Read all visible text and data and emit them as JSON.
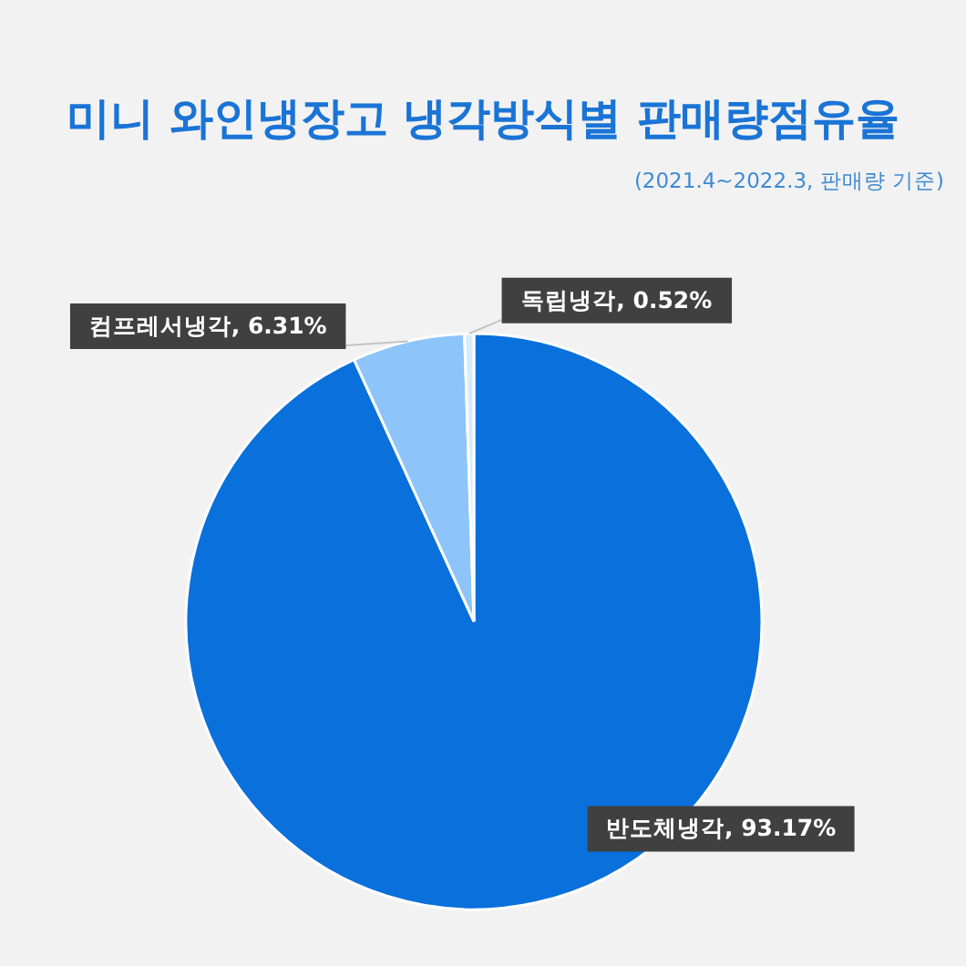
{
  "chart_data": {
    "type": "pie",
    "title": "미니 와인냉장고 냉각방식별 판매량점유율",
    "annotations": [
      "(2021.4~2022.3, 판매량 기준)"
    ],
    "categories": [
      "반도체냉각",
      "컴프레서냉각",
      "독립냉각"
    ],
    "values": [
      93.17,
      6.31,
      0.52
    ],
    "colors": [
      "#0a70dc",
      "#8dc4fa",
      "#d6ebfd"
    ],
    "value_labels": [
      "93.17%",
      "6.31%",
      "0.52%"
    ]
  }
}
